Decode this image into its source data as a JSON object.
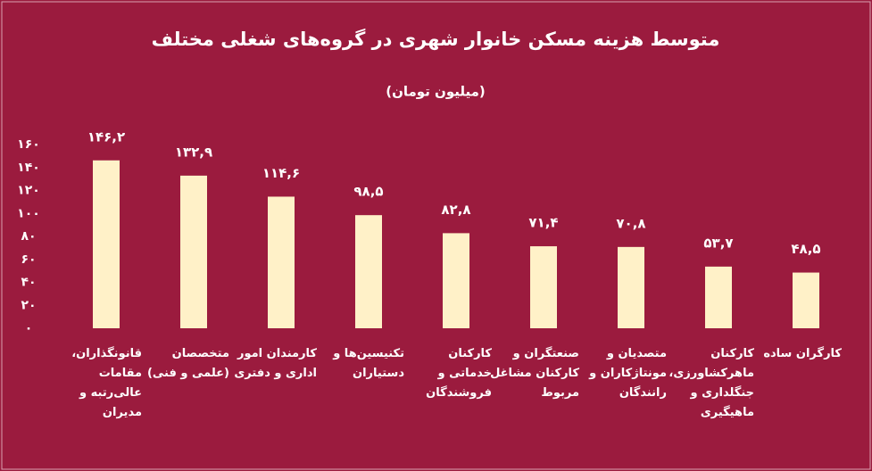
{
  "chart_data": {
    "type": "bar",
    "title": "متوسط هزینه مسکن خانوار شهری در گروه‌های شغلی مختلف",
    "subtitle": "(میلیون تومان)",
    "categories": [
      "قانونگذاران، مقامات عالی‌رتبه و مدیران",
      "متخصصان (علمی و فنی)",
      "کارمندان امور اداری و دفتری",
      "تکنیسین‌ها و دستیاران",
      "کارکنان خدماتی و فروشندگان",
      "صنعتگران و کارکنان مشاغل مربوط",
      "متصدیان و مونتاژکاران و رانندگان",
      "کارکنان ماهرکشاورزی، جنگلداری و ماهیگیری",
      "کارگران ساده"
    ],
    "values": [
      146.2,
      132.9,
      114.6,
      98.5,
      82.8,
      71.4,
      70.8,
      53.7,
      48.5
    ],
    "value_labels": [
      "۱۴۶,۲",
      "۱۳۲,۹",
      "۱۱۴,۶",
      "۹۸,۵",
      "۸۲,۸",
      "۷۱,۴",
      "۷۰,۸",
      "۵۳,۷",
      "۴۸,۵"
    ],
    "color": "#fff1c8",
    "ylim": [
      0,
      160
    ],
    "yticks": [
      {
        "value": 0,
        "label": "۰"
      },
      {
        "value": 20,
        "label": "۲۰"
      },
      {
        "value": 40,
        "label": "۴۰"
      },
      {
        "value": 60,
        "label": "۶۰"
      },
      {
        "value": 80,
        "label": "۸۰"
      },
      {
        "value": 100,
        "label": "۱۰۰"
      },
      {
        "value": 120,
        "label": "۱۲۰"
      },
      {
        "value": 140,
        "label": "۱۴۰"
      },
      {
        "value": 160,
        "label": "۱۶۰"
      }
    ],
    "grid": false
  }
}
